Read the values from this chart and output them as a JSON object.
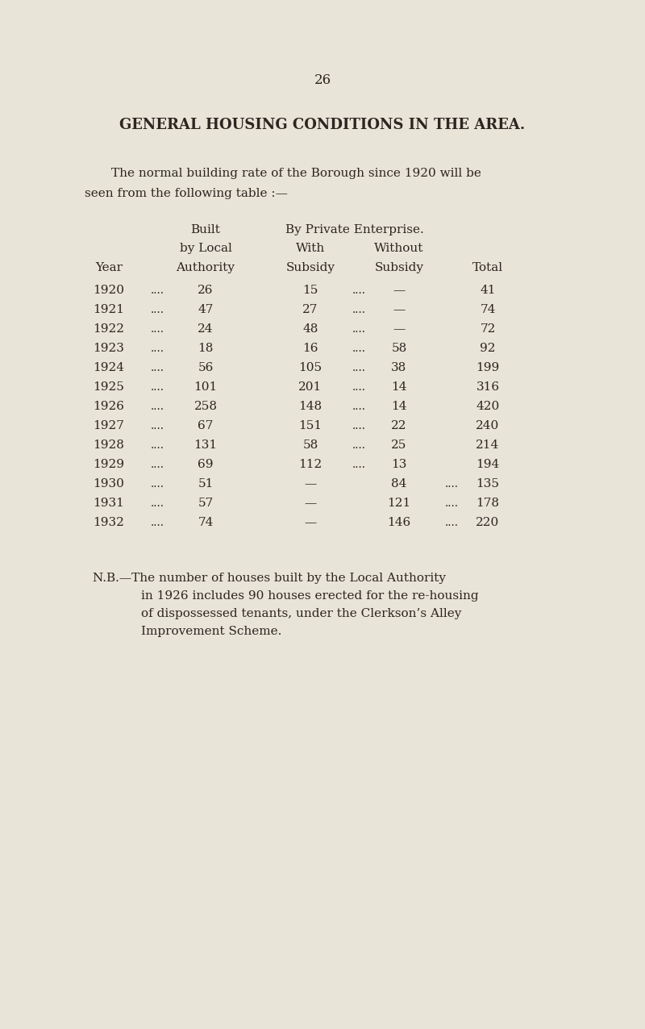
{
  "page_number": "26",
  "title": "GENERAL HOUSING CONDITIONS IN THE AREA.",
  "intro_text": "The normal building rate of the Borough since 1920 will be\nseen from the following table :—",
  "header_line1": [
    "",
    "Built",
    "By Private Enterprise.",
    "",
    ""
  ],
  "header_line2": [
    "",
    "by Local",
    "With",
    "Without",
    ""
  ],
  "header_line3": [
    "Year",
    "Authority",
    "Subsidy",
    "Subsidy",
    "Total"
  ],
  "rows": [
    [
      "1920",
      "26",
      "15",
      "—",
      "41"
    ],
    [
      "1921",
      "47",
      "27",
      "—",
      "74"
    ],
    [
      "1922",
      "24",
      "48",
      "—",
      "72"
    ],
    [
      "1923",
      "18",
      "16",
      "58",
      "92"
    ],
    [
      "1924",
      "56",
      "105",
      "38",
      "199"
    ],
    [
      "1925",
      "101",
      "201",
      "14",
      "316"
    ],
    [
      "1926",
      "258",
      "148",
      "14",
      "420"
    ],
    [
      "1927",
      "67",
      "151",
      "22",
      "240"
    ],
    [
      "1928",
      "131",
      "58",
      "25",
      "214"
    ],
    [
      "1929",
      "69",
      "112",
      "13",
      "194"
    ],
    [
      "1930",
      "51",
      "—",
      "84",
      "135"
    ],
    [
      "1931",
      "57",
      "—",
      "121",
      "178"
    ],
    [
      "1932",
      "74",
      "—",
      "146",
      "220"
    ]
  ],
  "dots_pattern": [
    [
      true,
      false,
      true,
      false,
      false
    ],
    [
      true,
      false,
      true,
      false,
      false
    ],
    [
      true,
      false,
      true,
      false,
      false
    ],
    [
      true,
      false,
      true,
      false,
      true
    ],
    [
      true,
      false,
      true,
      false,
      true
    ],
    [
      true,
      false,
      true,
      false,
      true
    ],
    [
      true,
      false,
      true,
      false,
      true
    ],
    [
      true,
      false,
      true,
      false,
      true
    ],
    [
      true,
      false,
      true,
      false,
      true
    ],
    [
      true,
      false,
      true,
      false,
      true
    ],
    [
      true,
      false,
      false,
      true,
      true
    ],
    [
      true,
      false,
      false,
      true,
      true
    ],
    [
      true,
      false,
      false,
      true,
      true
    ]
  ],
  "nb_text": "N.B.—The number of houses built by the Local Authority\n    in 1926 includes 90 houses erected for the re-housing\n    of dispossessed tenants, under the Clerkson’s Alley\n    Improvement Scheme.",
  "bg_color": "#e8e4d8",
  "text_color": "#2c2520",
  "font_size_title": 13,
  "font_size_body": 11,
  "font_size_page": 12
}
